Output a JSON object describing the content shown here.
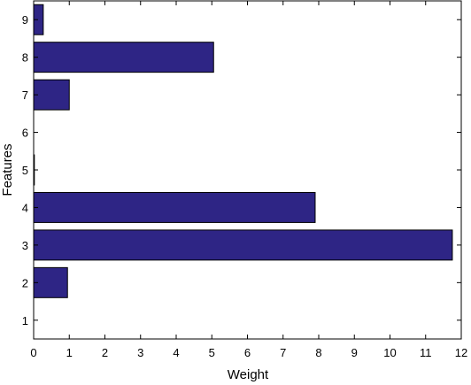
{
  "chart_data": {
    "type": "bar",
    "orientation": "horizontal",
    "xlabel": "Weight",
    "ylabel": "Features",
    "categories": [
      "1",
      "2",
      "3",
      "4",
      "5",
      "6",
      "7",
      "8",
      "9"
    ],
    "values": [
      0,
      0.95,
      11.75,
      7.9,
      0.02,
      0,
      1.0,
      5.05,
      0.27
    ],
    "xlim": [
      0,
      12
    ],
    "ylim": [
      0.5,
      9.5
    ],
    "xticks": [
      "0",
      "1",
      "2",
      "3",
      "4",
      "5",
      "6",
      "7",
      "8",
      "9",
      "10",
      "11",
      "12"
    ],
    "grid": false,
    "bar_color": "#2e2585",
    "bar_edge_color": "#000000"
  }
}
